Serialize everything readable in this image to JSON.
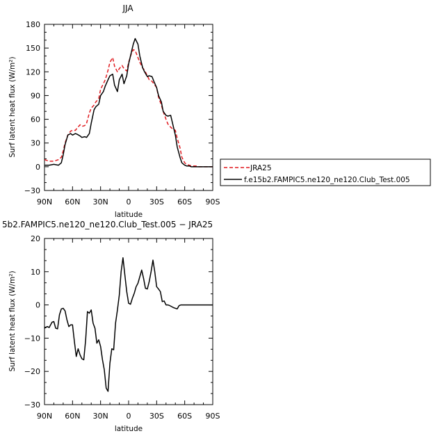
{
  "chart_data": [
    {
      "type": "line",
      "title": "JJA",
      "xlabel": "latitude",
      "ylabel": "Surf latent heat flux (W/m²)",
      "x_tick_labels": [
        "90N",
        "60N",
        "30N",
        "0",
        "30S",
        "60S",
        "90S"
      ],
      "y_tick_labels": [
        "−30",
        "0",
        "30",
        "60",
        "90",
        "120",
        "150",
        "180"
      ],
      "xlim": [
        90,
        -90
      ],
      "ylim": [
        -30,
        180
      ],
      "grid": false,
      "legend_position": "right",
      "series": [
        {
          "name": "JRA25",
          "color": "#e0191e",
          "style": "dashed",
          "x": [
            90,
            85,
            80,
            75,
            72,
            70,
            68,
            65,
            62,
            60,
            57,
            55,
            52,
            50,
            47,
            45,
            42,
            40,
            37,
            35,
            32,
            30,
            27,
            25,
            22,
            20,
            17,
            15,
            12,
            10,
            7,
            5,
            2,
            0,
            -3,
            -5,
            -7,
            -10,
            -12,
            -15,
            -17,
            -20,
            -22,
            -25,
            -27,
            -30,
            -32,
            -35,
            -37,
            -40,
            -42,
            -45,
            -47,
            -50,
            -52,
            -55,
            -57,
            -60,
            -62,
            -65,
            -67,
            -70,
            -72,
            -75,
            -77,
            -80,
            -85,
            -90
          ],
          "y": [
            9,
            7,
            7,
            9,
            12,
            20,
            30,
            40,
            45,
            46,
            46,
            49,
            53,
            51,
            52,
            55,
            68,
            74,
            78,
            82,
            86,
            98,
            105,
            110,
            122,
            132,
            138,
            127,
            120,
            124,
            128,
            124,
            121,
            132,
            143,
            148,
            147,
            138,
            132,
            125,
            122,
            115,
            110,
            108,
            105,
            100,
            88,
            78,
            70,
            60,
            54,
            50,
            48,
            46,
            36,
            24,
            12,
            5,
            3,
            2,
            1,
            1,
            1,
            0,
            0,
            0,
            0,
            0
          ]
        },
        {
          "name": "f.e15b2.FAMPIC5.ne120_ne120.Club_Test.005",
          "color": "#000000",
          "style": "solid",
          "x": [
            90,
            85,
            80,
            75,
            72,
            70,
            68,
            65,
            62,
            60,
            57,
            55,
            52,
            50,
            47,
            45,
            42,
            40,
            37,
            35,
            32,
            30,
            27,
            25,
            22,
            20,
            17,
            15,
            12,
            10,
            7,
            5,
            2,
            0,
            -3,
            -5,
            -7,
            -10,
            -12,
            -15,
            -17,
            -20,
            -22,
            -25,
            -27,
            -30,
            -32,
            -35,
            -37,
            -40,
            -42,
            -45,
            -47,
            -50,
            -52,
            -55,
            -57,
            -60,
            -62,
            -65,
            -67,
            -70,
            -72,
            -75,
            -77,
            -80,
            -85,
            -90
          ],
          "y": [
            2,
            2,
            3,
            2,
            5,
            15,
            28,
            40,
            42,
            40,
            42,
            41,
            39,
            37,
            38,
            37,
            42,
            55,
            72,
            76,
            79,
            90,
            95,
            102,
            110,
            115,
            117,
            103,
            95,
            110,
            117,
            105,
            115,
            130,
            145,
            155,
            162,
            155,
            140,
            125,
            120,
            114,
            115,
            114,
            108,
            100,
            90,
            82,
            70,
            65,
            64,
            65,
            55,
            40,
            25,
            12,
            5,
            2,
            1,
            1,
            0,
            0,
            0,
            0,
            0,
            0,
            0,
            0
          ]
        }
      ]
    },
    {
      "type": "line",
      "title": "5b2.FAMPIC5.ne120_ne120.Club_Test.005 − JRA25",
      "xlabel": "latitude",
      "ylabel": "Surf latent heat flux (W/m²)",
      "x_tick_labels": [
        "90N",
        "60N",
        "30N",
        "0",
        "30S",
        "60S",
        "90S"
      ],
      "y_tick_labels": [
        "−30",
        "−20",
        "−10",
        "0",
        "10",
        "20"
      ],
      "xlim": [
        90,
        -90
      ],
      "ylim": [
        -30,
        20
      ],
      "grid": false,
      "series": [
        {
          "color": "#000000",
          "style": "solid",
          "x": [
            90,
            87,
            85,
            82,
            80,
            78,
            76,
            74,
            72,
            70,
            68,
            66,
            64,
            62,
            60,
            58,
            56,
            54,
            52,
            50,
            48,
            46,
            44,
            42,
            40,
            38,
            36,
            34,
            32,
            30,
            28,
            26,
            24,
            22,
            20,
            18,
            16,
            14,
            12,
            10,
            8,
            6,
            4,
            2,
            0,
            -2,
            -4,
            -6,
            -8,
            -10,
            -12,
            -14,
            -16,
            -18,
            -20,
            -22,
            -24,
            -26,
            -28,
            -30,
            -32,
            -34,
            -36,
            -38,
            -40,
            -42,
            -44,
            -46,
            -48,
            -50,
            -52,
            -54,
            -56,
            -58,
            -60,
            -62,
            -64,
            -66,
            -68,
            -70,
            -72,
            -74,
            -76,
            -78,
            -80,
            -82,
            -84,
            -86,
            -88,
            -90
          ],
          "y": [
            -7,
            -6.5,
            -6.8,
            -5.2,
            -5,
            -7,
            -7.2,
            -3,
            -1.2,
            -1,
            -1.8,
            -4.5,
            -6.5,
            -6,
            -6,
            -11,
            -15.5,
            -13.2,
            -15,
            -16.2,
            -16.5,
            -10.5,
            -2,
            -2.5,
            -1.5,
            -5.5,
            -7,
            -11.5,
            -10.5,
            -12.5,
            -16.5,
            -19.5,
            -25,
            -26,
            -17.5,
            -13.2,
            -13.5,
            -5.5,
            -1.5,
            3,
            10,
            14.2,
            9,
            4,
            0.5,
            0.2,
            2,
            3.5,
            5.5,
            6.5,
            8.5,
            10.5,
            8,
            5,
            4.8,
            7,
            10,
            13.5,
            10,
            5.5,
            4.8,
            4,
            1,
            1.2,
            0,
            0,
            -0.2,
            -0.5,
            -0.8,
            -1,
            -1.2,
            -0.2,
            0,
            0,
            0,
            0,
            0,
            0,
            0,
            0,
            0,
            0,
            0,
            0,
            0,
            0,
            0,
            0,
            0,
            0
          ]
        }
      ]
    }
  ]
}
